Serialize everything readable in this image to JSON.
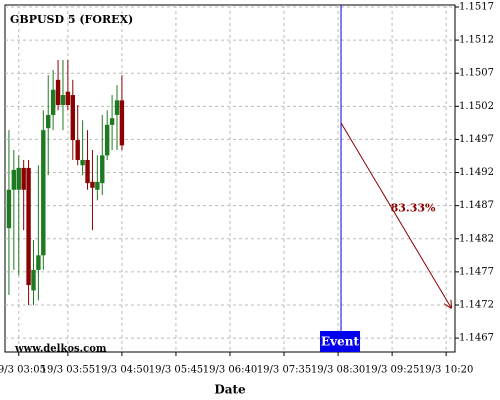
{
  "chart_data": {
    "type": "candlestick",
    "title": "GBPUSD 5 (FOREX)",
    "watermark": "www.delkos.com",
    "x_label": "Date",
    "up_color": "#1e7a1e",
    "down_color": "#8b0000",
    "x": [
      "19/3 02:55",
      "19/3 03:00",
      "19/3 03:05",
      "19/3 03:10",
      "19/3 03:15",
      "19/3 03:20",
      "19/3 03:25",
      "19/3 03:30",
      "19/3 03:35",
      "19/3 03:40",
      "19/3 03:45",
      "19/3 03:50",
      "19/3 03:55",
      "19/3 04:00",
      "19/3 04:05",
      "19/3 04:10",
      "19/3 04:15",
      "19/3 04:20",
      "19/3 04:25",
      "19/3 04:30",
      "19/3 04:35",
      "19/3 04:40",
      "19/3 04:45",
      "19/3 04:50"
    ],
    "open": [
      1.14836,
      1.14894,
      1.14894,
      1.14927,
      1.14927,
      1.14742,
      1.14773,
      1.14795,
      1.14987,
      1.15007,
      1.1506,
      1.15022,
      1.15042,
      1.15037,
      1.14969,
      1.14931,
      1.14939,
      1.14906,
      1.14894,
      1.14904,
      1.14946,
      1.14992,
      1.15007,
      1.15029
    ],
    "high": [
      1.14984,
      1.14954,
      1.14946,
      1.14939,
      1.14939,
      1.14818,
      1.14931,
      1.15014,
      1.15067,
      1.15075,
      1.1509,
      1.1509,
      1.1509,
      1.1506,
      1.15022,
      1.14999,
      1.14984,
      1.14954,
      1.14946,
      1.15007,
      1.15014,
      1.15037,
      1.15052,
      1.15067
    ],
    "low": [
      1.14735,
      1.14773,
      1.14765,
      1.14833,
      1.1472,
      1.1472,
      1.14727,
      1.14773,
      1.14916,
      1.14984,
      1.15014,
      1.14984,
      1.15014,
      1.14939,
      1.14931,
      1.14916,
      1.14894,
      1.14833,
      1.14878,
      1.14886,
      1.14939,
      1.14954,
      1.14954,
      1.14954
    ],
    "close": [
      1.14894,
      1.14924,
      1.14927,
      1.14894,
      1.1475,
      1.14773,
      1.14795,
      1.14984,
      1.15007,
      1.15045,
      1.15022,
      1.15037,
      1.15022,
      1.14969,
      1.14939,
      1.14939,
      1.14904,
      1.14897,
      1.14906,
      1.14946,
      1.14992,
      1.15002,
      1.15029,
      1.14961
    ],
    "xlim": [
      "19/3 02:51",
      "19/3 10:29"
    ],
    "xticks": [
      "19/3 03:05",
      "19/3 03:55",
      "19/3 04:50",
      "19/3 05:45",
      "19/3 06:40",
      "19/3 07:35",
      "19/3 08:30",
      "19/3 09:25",
      "19/3 10:20"
    ],
    "ylim": [
      1.14649,
      1.15173
    ],
    "yticks": [
      1.1467,
      1.1472,
      1.1477,
      1.1482,
      1.1487,
      1.1492,
      1.1497,
      1.1502,
      1.1507,
      1.1512,
      1.1517
    ],
    "grid": true,
    "event": {
      "label": "Event",
      "x": "19/3 08:33",
      "color": "#0000ee"
    },
    "arrow": {
      "x": [
        "19/3 08:33",
        "19/3 10:25"
      ],
      "y": [
        1.14995,
        1.14716
      ],
      "label": "83.33%",
      "color": "#8b0000"
    }
  }
}
